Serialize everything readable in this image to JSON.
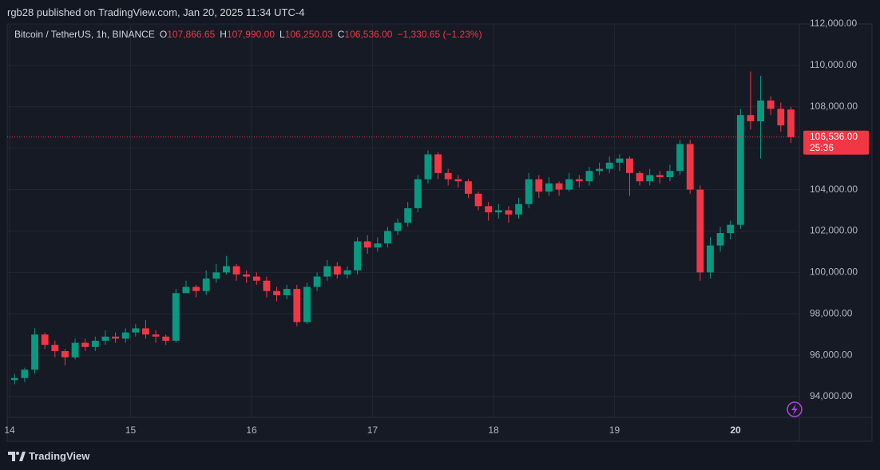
{
  "chart_data": {
    "type": "candlestick",
    "title": "rgb28 published on TradingView.com, Jan 20, 2025 11:34 UTC-4",
    "brand": "TradingView",
    "symbol": "Bitcoin / TetherUS, 1h, BINANCE",
    "ohlc_legend": [
      {
        "label": "O",
        "value": "107,866.65"
      },
      {
        "label": "H",
        "value": "107,990.00"
      },
      {
        "label": "L",
        "value": "106,250.03"
      },
      {
        "label": "C",
        "value": "106,536.00"
      }
    ],
    "change": "−1,330.65 (−1.23%)",
    "up_color": "#089981",
    "down_color": "#f23645",
    "last_price": {
      "value": 106536,
      "label": "106,536.00"
    },
    "countdown": "25:36",
    "categories": [
      "14",
      null,
      null,
      null,
      null,
      null,
      null,
      null,
      null,
      null,
      null,
      null,
      "15",
      null,
      null,
      null,
      null,
      null,
      null,
      null,
      null,
      null,
      null,
      null,
      "16",
      null,
      null,
      null,
      null,
      null,
      null,
      null,
      null,
      null,
      null,
      null,
      "17",
      null,
      null,
      null,
      null,
      null,
      null,
      null,
      null,
      null,
      null,
      null,
      "18",
      null,
      null,
      null,
      null,
      null,
      null,
      null,
      null,
      null,
      null,
      null,
      "19",
      null,
      null,
      null,
      null,
      null,
      null,
      null,
      null,
      null,
      null,
      null,
      "20",
      null,
      null,
      null,
      null,
      null
    ],
    "open": [
      94800,
      94900,
      95300,
      97000,
      96500,
      96200,
      95900,
      96600,
      96400,
      96700,
      96900,
      96800,
      97100,
      97300,
      97000,
      96900,
      96700,
      99000,
      99300,
      99100,
      99700,
      100000,
      100300,
      99900,
      99800,
      99600,
      99100,
      98900,
      99200,
      97600,
      99300,
      99800,
      100300,
      99900,
      100100,
      101500,
      101200,
      101400,
      102000,
      102400,
      103100,
      104500,
      105700,
      104800,
      104500,
      104400,
      103800,
      103200,
      102900,
      103000,
      102800,
      103300,
      104500,
      103900,
      104300,
      104000,
      104500,
      104400,
      104900,
      105000,
      105300,
      105500,
      104800,
      104400,
      104700,
      104600,
      104900,
      106200,
      104000,
      100000,
      101300,
      101900,
      102300,
      107600,
      107300,
      108300,
      107900,
      107866.65
    ],
    "high": [
      95100,
      95400,
      97300,
      97100,
      96700,
      96300,
      96800,
      96800,
      96900,
      97200,
      97100,
      97300,
      97500,
      97700,
      97200,
      97000,
      99200,
      99600,
      99400,
      100100,
      100400,
      100800,
      100400,
      100100,
      100000,
      99800,
      99300,
      99400,
      99400,
      99500,
      100000,
      100600,
      100500,
      100300,
      101700,
      101800,
      101700,
      102200,
      102600,
      103400,
      104700,
      105900,
      105800,
      105000,
      104700,
      104500,
      103900,
      103400,
      103300,
      103200,
      103600,
      104800,
      104700,
      104600,
      104400,
      104800,
      104700,
      105100,
      105300,
      105600,
      105700,
      105600,
      104900,
      105000,
      104900,
      105200,
      106400,
      106400,
      104200,
      101700,
      102200,
      102500,
      107900,
      109700,
      109500,
      108500,
      108200,
      107990
    ],
    "low": [
      94600,
      94700,
      95100,
      96300,
      95900,
      95500,
      95800,
      96200,
      96200,
      96500,
      96600,
      96600,
      96900,
      96800,
      96600,
      96500,
      96600,
      99000,
      98800,
      98900,
      99500,
      99900,
      99600,
      99500,
      99400,
      98800,
      98600,
      98700,
      97400,
      97500,
      99100,
      99600,
      99700,
      99700,
      99900,
      100900,
      101000,
      101200,
      101800,
      102200,
      102900,
      104300,
      104500,
      104200,
      104100,
      103600,
      103000,
      102500,
      102600,
      102400,
      102600,
      103100,
      103600,
      103700,
      103700,
      103900,
      104100,
      104200,
      104700,
      104800,
      104900,
      103700,
      104200,
      104200,
      104300,
      104400,
      104700,
      103800,
      99600,
      99700,
      101000,
      101600,
      102100,
      106900,
      105500,
      107600,
      106800,
      106250.03
    ],
    "close": [
      94900,
      95300,
      97000,
      96500,
      96200,
      95900,
      96600,
      96400,
      96700,
      96900,
      96800,
      97100,
      97300,
      97000,
      96900,
      96700,
      99000,
      99300,
      99100,
      99700,
      100000,
      100300,
      99900,
      99800,
      99600,
      99100,
      98900,
      99200,
      97600,
      99300,
      99800,
      100300,
      99900,
      100100,
      101500,
      101200,
      101400,
      102000,
      102400,
      103100,
      104500,
      105700,
      104800,
      104500,
      104400,
      103800,
      103200,
      102900,
      103000,
      102800,
      103300,
      104500,
      103900,
      104300,
      104000,
      104500,
      104400,
      104900,
      105000,
      105300,
      105500,
      104800,
      104400,
      104700,
      104600,
      104900,
      106200,
      104000,
      100000,
      101300,
      101900,
      102300,
      107600,
      107300,
      108300,
      107900,
      107100,
      106536
    ],
    "ylim": [
      93000,
      112000
    ],
    "yticks": [
      {
        "value": 94000,
        "label": "94,000.00"
      },
      {
        "value": 96000,
        "label": "96,000.00"
      },
      {
        "value": 98000,
        "label": "98,000.00"
      },
      {
        "value": 100000,
        "label": "100,000.00"
      },
      {
        "value": 102000,
        "label": "102,000.00"
      },
      {
        "value": 104000,
        "label": "104,000.00"
      },
      {
        "value": 106000,
        "label": "106,000.00"
      },
      {
        "value": 108000,
        "label": "108,000.00"
      },
      {
        "value": 110000,
        "label": "110,000.00"
      },
      {
        "value": 112000,
        "label": "112,000.00"
      }
    ],
    "grid": true
  }
}
